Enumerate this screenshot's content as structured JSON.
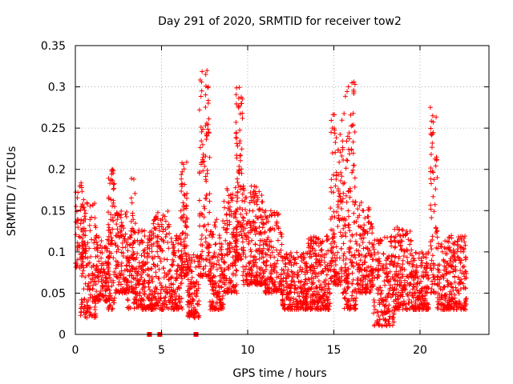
{
  "chart_data": {
    "type": "scatter",
    "title": "Day 291 of 2020, SRMTID for receiver tow2",
    "xlabel": "GPS time / hours",
    "ylabel": "SRMTID / TECUs",
    "xlim": [
      0,
      24
    ],
    "ylim": [
      0,
      0.35
    ],
    "xticks": [
      0,
      5,
      10,
      15,
      20
    ],
    "xtick_labels": [
      "0",
      "5",
      "10",
      "15",
      "20"
    ],
    "yticks": [
      0,
      0.05,
      0.1,
      0.15,
      0.2,
      0.25,
      0.3,
      0.35
    ],
    "ytick_labels": [
      "0",
      "0.05",
      "0.1",
      "0.15",
      "0.2",
      "0.25",
      "0.3",
      "0.35"
    ],
    "grid": true,
    "marker": "plus",
    "color": "#ff0000",
    "clusters": [
      {
        "x_start": 0.0,
        "x_end": 0.5,
        "y_min": 0.08,
        "y_max": 0.185,
        "n": 60
      },
      {
        "x_start": 0.3,
        "x_end": 1.2,
        "y_min": 0.02,
        "y_max": 0.16,
        "n": 140
      },
      {
        "x_start": 1.2,
        "x_end": 2.0,
        "y_min": 0.04,
        "y_max": 0.12,
        "n": 120
      },
      {
        "x_start": 1.9,
        "x_end": 2.3,
        "y_min": 0.03,
        "y_max": 0.2,
        "n": 80
      },
      {
        "x_start": 2.3,
        "x_end": 3.0,
        "y_min": 0.05,
        "y_max": 0.15,
        "n": 110
      },
      {
        "x_start": 3.0,
        "x_end": 4.5,
        "y_min": 0.03,
        "y_max": 0.13,
        "n": 230
      },
      {
        "x_start": 3.2,
        "x_end": 3.5,
        "y_min": 0.05,
        "y_max": 0.19,
        "n": 30
      },
      {
        "x_start": 4.5,
        "x_end": 5.5,
        "y_min": 0.03,
        "y_max": 0.15,
        "n": 150
      },
      {
        "x_start": 5.5,
        "x_end": 6.2,
        "y_min": 0.03,
        "y_max": 0.12,
        "n": 120
      },
      {
        "x_start": 6.1,
        "x_end": 6.5,
        "y_min": 0.07,
        "y_max": 0.21,
        "n": 80
      },
      {
        "x_start": 6.5,
        "x_end": 7.2,
        "y_min": 0.02,
        "y_max": 0.1,
        "n": 110
      },
      {
        "x_start": 7.2,
        "x_end": 7.8,
        "y_min": 0.07,
        "y_max": 0.32,
        "n": 120
      },
      {
        "x_start": 7.8,
        "x_end": 8.6,
        "y_min": 0.03,
        "y_max": 0.14,
        "n": 140
      },
      {
        "x_start": 8.6,
        "x_end": 9.4,
        "y_min": 0.05,
        "y_max": 0.18,
        "n": 130
      },
      {
        "x_start": 9.3,
        "x_end": 9.7,
        "y_min": 0.09,
        "y_max": 0.3,
        "n": 90
      },
      {
        "x_start": 9.7,
        "x_end": 11.0,
        "y_min": 0.06,
        "y_max": 0.18,
        "n": 220
      },
      {
        "x_start": 11.0,
        "x_end": 12.0,
        "y_min": 0.05,
        "y_max": 0.15,
        "n": 150
      },
      {
        "x_start": 12.0,
        "x_end": 13.5,
        "y_min": 0.03,
        "y_max": 0.1,
        "n": 230
      },
      {
        "x_start": 13.5,
        "x_end": 14.8,
        "y_min": 0.03,
        "y_max": 0.12,
        "n": 220
      },
      {
        "x_start": 14.8,
        "x_end": 15.5,
        "y_min": 0.06,
        "y_max": 0.27,
        "n": 130
      },
      {
        "x_start": 15.5,
        "x_end": 16.3,
        "y_min": 0.03,
        "y_max": 0.31,
        "n": 170
      },
      {
        "x_start": 16.3,
        "x_end": 17.3,
        "y_min": 0.05,
        "y_max": 0.16,
        "n": 160
      },
      {
        "x_start": 17.3,
        "x_end": 18.5,
        "y_min": 0.01,
        "y_max": 0.12,
        "n": 180
      },
      {
        "x_start": 18.5,
        "x_end": 19.5,
        "y_min": 0.03,
        "y_max": 0.13,
        "n": 160
      },
      {
        "x_start": 19.5,
        "x_end": 20.5,
        "y_min": 0.03,
        "y_max": 0.1,
        "n": 160
      },
      {
        "x_start": 20.6,
        "x_end": 21.0,
        "y_min": 0.05,
        "y_max": 0.285,
        "n": 70
      },
      {
        "x_start": 21.0,
        "x_end": 22.7,
        "y_min": 0.03,
        "y_max": 0.12,
        "n": 260
      }
    ],
    "gap_markers": [
      4.3,
      4.9,
      7.0
    ]
  }
}
